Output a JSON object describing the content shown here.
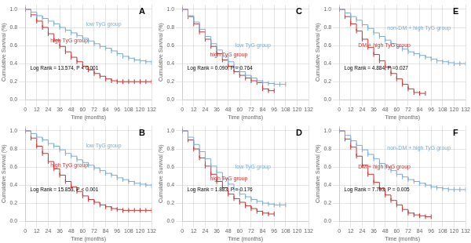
{
  "chart_data": [
    {
      "type": "line",
      "title": "A",
      "xlabel": "Time (months)",
      "ylabel": "Cumulative Survival (%)",
      "annotations": [
        "Log Rank = 13.574, P < 0.001"
      ],
      "line_style": "step",
      "grid": true,
      "xlim": [
        0,
        132
      ],
      "xticks": [
        0,
        12,
        24,
        36,
        48,
        60,
        72,
        84,
        96,
        108,
        120,
        132
      ],
      "ylim": [
        0.0,
        1.05
      ],
      "yticks": [
        {
          "value": 0.0,
          "label": "0.0"
        },
        0.2,
        0.4,
        0.6,
        0.8,
        {
          "value": 1.0,
          "label": "1.0"
        }
      ],
      "series": [
        {
          "name": "low TyG group",
          "color": "#7aadd4",
          "marker": "tick",
          "x": [
            0,
            6,
            12,
            18,
            24,
            30,
            36,
            42,
            48,
            54,
            60,
            66,
            72,
            78,
            84,
            90,
            96,
            102,
            108,
            114,
            120,
            126,
            132
          ],
          "values": [
            1.0,
            0.97,
            0.93,
            0.9,
            0.87,
            0.84,
            0.8,
            0.77,
            0.74,
            0.71,
            0.68,
            0.65,
            0.62,
            0.59,
            0.57,
            0.54,
            0.51,
            0.48,
            0.46,
            0.44,
            0.43,
            0.42,
            0.41
          ]
        },
        {
          "name": "high TyG group",
          "color": "#cc3333",
          "marker": "tick",
          "x": [
            0,
            6,
            12,
            18,
            24,
            30,
            36,
            42,
            48,
            54,
            60,
            66,
            72,
            78,
            84,
            90,
            96,
            102,
            108,
            114,
            120,
            126,
            132
          ],
          "values": [
            1.0,
            0.94,
            0.87,
            0.8,
            0.73,
            0.66,
            0.59,
            0.53,
            0.47,
            0.42,
            0.37,
            0.33,
            0.29,
            0.26,
            0.23,
            0.21,
            0.2,
            0.2,
            0.2,
            0.2,
            0.2,
            0.2,
            0.2
          ]
        }
      ]
    },
    {
      "type": "line",
      "title": "C",
      "xlabel": "Time (months)",
      "ylabel": "Cumulative Survival (%)",
      "annotations": [
        "Log Rank = 0.090, P = 0.764"
      ],
      "line_style": "step",
      "grid": true,
      "xlim": [
        0,
        132
      ],
      "xticks": [
        0,
        12,
        24,
        36,
        48,
        60,
        72,
        84,
        96,
        108,
        120,
        132
      ],
      "ylim": [
        0.0,
        1.05
      ],
      "yticks": [
        {
          "value": 0.0,
          "label": "0.0"
        },
        0.2,
        0.4,
        0.6,
        0.8,
        {
          "value": 1.0,
          "label": "1.0"
        }
      ],
      "series": [
        {
          "name": "low TyG group",
          "color": "#7aadd4",
          "marker": "tick",
          "x": [
            0,
            6,
            12,
            18,
            24,
            30,
            36,
            42,
            48,
            54,
            60,
            66,
            72,
            78,
            84,
            90,
            96,
            102,
            108
          ],
          "values": [
            1.0,
            0.93,
            0.86,
            0.78,
            0.7,
            0.62,
            0.55,
            0.48,
            0.42,
            0.36,
            0.31,
            0.27,
            0.24,
            0.21,
            0.19,
            0.18,
            0.17,
            0.17,
            0.17
          ]
        },
        {
          "name": "high TyG group",
          "color": "#cc3333",
          "marker": "tick",
          "x": [
            0,
            6,
            12,
            18,
            24,
            30,
            36,
            42,
            48,
            54,
            60,
            66,
            72,
            78,
            84,
            90,
            96
          ],
          "values": [
            1.0,
            0.92,
            0.84,
            0.75,
            0.67,
            0.59,
            0.51,
            0.44,
            0.37,
            0.31,
            0.27,
            0.24,
            0.21,
            0.19,
            0.12,
            0.1,
            0.1
          ]
        }
      ]
    },
    {
      "type": "line",
      "title": "E",
      "xlabel": "Time (months)",
      "ylabel": "Cumulative Survival (%)",
      "annotations": [
        "Log Rank = 4.884, P =0.027"
      ],
      "line_style": "step",
      "grid": true,
      "xlim": [
        0,
        132
      ],
      "xticks": [
        0,
        12,
        24,
        36,
        48,
        60,
        72,
        84,
        96,
        108,
        120,
        132
      ],
      "ylim": [
        0.0,
        1.05
      ],
      "yticks": [
        {
          "value": 0.0,
          "label": "0.0"
        },
        0.2,
        0.4,
        0.6,
        0.8,
        {
          "value": 1.0,
          "label": "1.0"
        }
      ],
      "series": [
        {
          "name": "non-DM + high TyG group",
          "color": "#7aadd4",
          "marker": "tick",
          "x": [
            0,
            6,
            12,
            18,
            24,
            30,
            36,
            42,
            48,
            54,
            60,
            66,
            72,
            78,
            84,
            90,
            96,
            102,
            108,
            114,
            120,
            126,
            132
          ],
          "values": [
            1.0,
            0.96,
            0.92,
            0.88,
            0.83,
            0.79,
            0.74,
            0.7,
            0.66,
            0.62,
            0.59,
            0.56,
            0.53,
            0.51,
            0.49,
            0.47,
            0.45,
            0.43,
            0.42,
            0.41,
            0.4,
            0.4,
            0.4
          ]
        },
        {
          "name": "DM + high TyG group",
          "color": "#cc3333",
          "marker": "tick",
          "x": [
            0,
            6,
            12,
            18,
            24,
            30,
            36,
            42,
            48,
            54,
            60,
            66,
            72,
            78,
            84,
            90
          ],
          "values": [
            1.0,
            0.92,
            0.84,
            0.76,
            0.67,
            0.58,
            0.5,
            0.43,
            0.36,
            0.29,
            0.23,
            0.17,
            0.12,
            0.08,
            0.07,
            0.07
          ]
        }
      ]
    },
    {
      "type": "line",
      "title": "B",
      "xlabel": "Time (months)",
      "ylabel": "Cumulative Survival (%)",
      "annotations": [
        "Log Rank = 15.853, P < 0.001"
      ],
      "line_style": "step",
      "grid": true,
      "xlim": [
        0,
        132
      ],
      "xticks": [
        0,
        12,
        24,
        36,
        48,
        60,
        72,
        84,
        96,
        108,
        120,
        132
      ],
      "ylim": [
        0.0,
        1.05
      ],
      "yticks": [
        {
          "value": 0.0,
          "label": "0.0"
        },
        0.2,
        0.4,
        0.6,
        0.8,
        {
          "value": 1.0,
          "label": "1.0"
        }
      ],
      "series": [
        {
          "name": "low TyG group",
          "color": "#7aadd4",
          "marker": "tick",
          "x": [
            0,
            6,
            12,
            18,
            24,
            30,
            36,
            42,
            48,
            54,
            60,
            66,
            72,
            78,
            84,
            90,
            96,
            102,
            108,
            114,
            120,
            126,
            132
          ],
          "values": [
            1.0,
            0.97,
            0.93,
            0.9,
            0.86,
            0.83,
            0.79,
            0.75,
            0.72,
            0.68,
            0.65,
            0.62,
            0.59,
            0.56,
            0.53,
            0.51,
            0.48,
            0.46,
            0.44,
            0.42,
            0.41,
            0.4,
            0.39
          ]
        },
        {
          "name": "high TyG group",
          "color": "#cc3333",
          "marker": "tick",
          "x": [
            0,
            6,
            12,
            18,
            24,
            30,
            36,
            42,
            48,
            54,
            60,
            66,
            72,
            78,
            84,
            90,
            96,
            102,
            108,
            114,
            120,
            126,
            132
          ],
          "values": [
            1.0,
            0.92,
            0.83,
            0.75,
            0.66,
            0.58,
            0.51,
            0.44,
            0.38,
            0.33,
            0.28,
            0.24,
            0.21,
            0.18,
            0.16,
            0.14,
            0.13,
            0.12,
            0.12,
            0.12,
            0.12,
            0.12,
            0.12
          ]
        }
      ]
    },
    {
      "type": "line",
      "title": "D",
      "xlabel": "Time (months)",
      "ylabel": "Cumulative Survival (%)",
      "annotations": [
        "Log Rank = 1.833, P = 0.176"
      ],
      "line_style": "step",
      "grid": true,
      "xlim": [
        0,
        132
      ],
      "xticks": [
        0,
        12,
        24,
        36,
        48,
        60,
        72,
        84,
        96,
        108,
        120,
        132
      ],
      "ylim": [
        0.0,
        1.05
      ],
      "yticks": [
        {
          "value": 0.0,
          "label": "0.0"
        },
        0.2,
        0.4,
        0.6,
        0.8,
        {
          "value": 1.0,
          "label": "1.0"
        }
      ],
      "series": [
        {
          "name": "low TyG group",
          "color": "#7aadd4",
          "marker": "tick",
          "x": [
            0,
            6,
            12,
            18,
            24,
            30,
            36,
            42,
            48,
            54,
            60,
            66,
            72,
            78,
            84,
            90,
            96,
            102,
            108
          ],
          "values": [
            1.0,
            0.93,
            0.85,
            0.77,
            0.69,
            0.61,
            0.54,
            0.47,
            0.41,
            0.35,
            0.3,
            0.27,
            0.24,
            0.22,
            0.2,
            0.19,
            0.18,
            0.18,
            0.18
          ]
        },
        {
          "name": "high TyG group",
          "color": "#cc3333",
          "marker": "tick",
          "x": [
            0,
            6,
            12,
            18,
            24,
            30,
            36,
            42,
            48,
            54,
            60,
            66,
            72,
            78,
            84,
            90,
            96
          ],
          "values": [
            1.0,
            0.9,
            0.8,
            0.7,
            0.61,
            0.52,
            0.44,
            0.37,
            0.3,
            0.25,
            0.21,
            0.17,
            0.14,
            0.11,
            0.09,
            0.08,
            0.08
          ]
        }
      ]
    },
    {
      "type": "line",
      "title": "F",
      "xlabel": "Time (months)",
      "ylabel": "Cumulative Survival (%)",
      "annotations": [
        "Log Rank = 7.793, P = 0.005"
      ],
      "line_style": "step",
      "grid": true,
      "xlim": [
        0,
        132
      ],
      "xticks": [
        0,
        12,
        24,
        36,
        48,
        60,
        72,
        84,
        96,
        108,
        120,
        132
      ],
      "ylim": [
        0.0,
        1.05
      ],
      "yticks": [
        {
          "value": 0.0,
          "label": "0.0"
        },
        0.2,
        0.4,
        0.6,
        0.8,
        {
          "value": 1.0,
          "label": "1.0"
        }
      ],
      "series": [
        {
          "name": "non-DM + high TyG group",
          "color": "#7aadd4",
          "marker": "tick",
          "x": [
            0,
            6,
            12,
            18,
            24,
            30,
            36,
            42,
            48,
            54,
            60,
            66,
            72,
            78,
            84,
            90,
            96,
            102,
            108,
            114,
            120,
            126,
            132
          ],
          "values": [
            1.0,
            0.95,
            0.89,
            0.84,
            0.79,
            0.74,
            0.69,
            0.64,
            0.6,
            0.56,
            0.52,
            0.49,
            0.46,
            0.44,
            0.42,
            0.4,
            0.38,
            0.37,
            0.36,
            0.35,
            0.35,
            0.35,
            0.35
          ]
        },
        {
          "name": "DM + high TyG group",
          "color": "#cc3333",
          "marker": "tick",
          "x": [
            0,
            6,
            12,
            18,
            24,
            30,
            36,
            42,
            48,
            54,
            60,
            66,
            72,
            78,
            84,
            90,
            96
          ],
          "values": [
            1.0,
            0.91,
            0.82,
            0.72,
            0.62,
            0.52,
            0.43,
            0.36,
            0.29,
            0.23,
            0.18,
            0.13,
            0.09,
            0.07,
            0.06,
            0.05,
            0.05
          ]
        }
      ]
    }
  ]
}
